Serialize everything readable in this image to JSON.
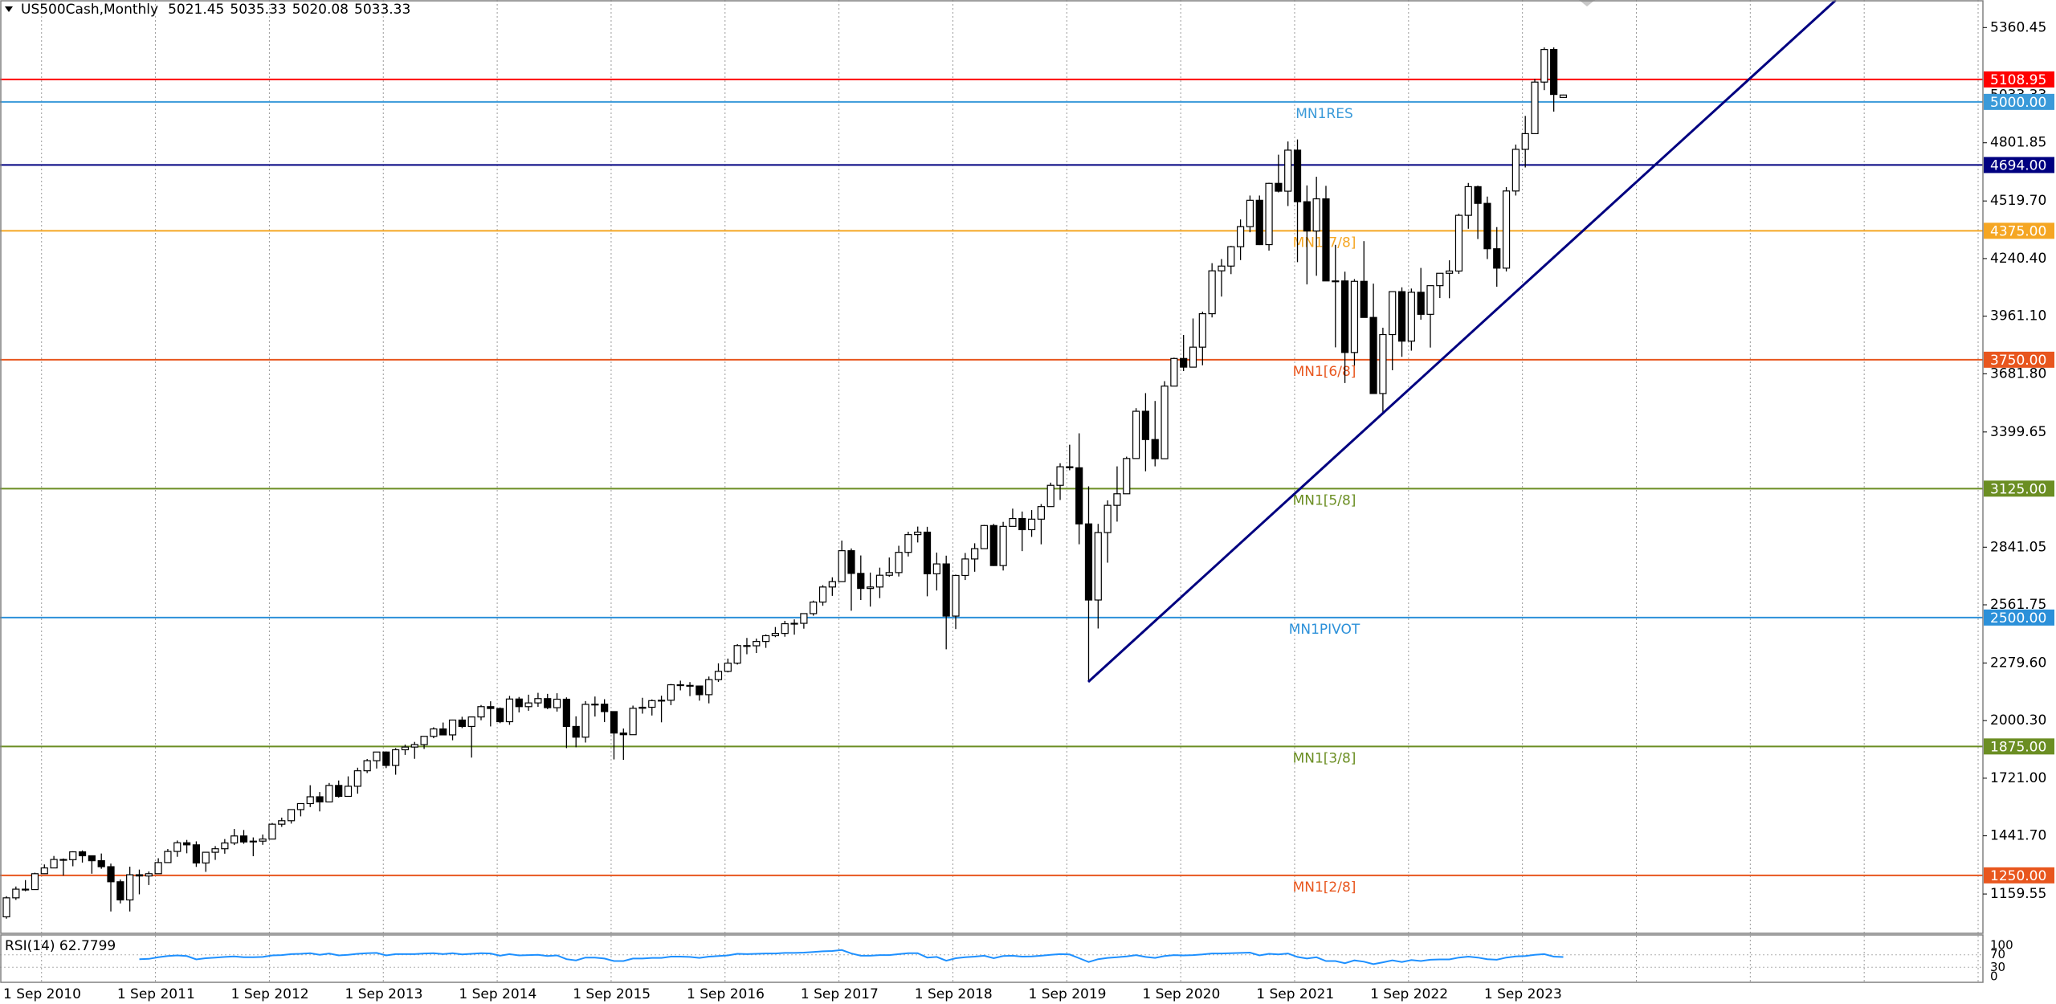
{
  "chart_data": {
    "type": "candlestick",
    "title": "US500Cash,Monthly",
    "categories": [
      "1 Sep 2010",
      null,
      null,
      null,
      null,
      null,
      null,
      null,
      null,
      null,
      null,
      null,
      "1 Sep 2011",
      null,
      null,
      null,
      null,
      null,
      null,
      null,
      null,
      null,
      null,
      null,
      "1 Sep 2012",
      null,
      null,
      null,
      null,
      null,
      null,
      null,
      null,
      null,
      null,
      null,
      "1 Sep 2013",
      null,
      null,
      null,
      null,
      null,
      null,
      null,
      null,
      null,
      null,
      null,
      "1 Sep 2014",
      null,
      null,
      null,
      null,
      null,
      null,
      null,
      null,
      null,
      null,
      null,
      "1 Sep 2015",
      null,
      null,
      null,
      null,
      null,
      null,
      null,
      null,
      null,
      null,
      null,
      "1 Sep 2016",
      null,
      null,
      null,
      null,
      null,
      null,
      null,
      null,
      null,
      null,
      null,
      "1 Sep 2017",
      null,
      null,
      null,
      null,
      null,
      null,
      null,
      null,
      null,
      null,
      null,
      "1 Sep 2018",
      null,
      null,
      null,
      null,
      null,
      null,
      null,
      null,
      null,
      null,
      null,
      "1 Sep 2019",
      null,
      null,
      null,
      null,
      null,
      null,
      null,
      null,
      null,
      null,
      null,
      "1 Sep 2020",
      null,
      null,
      null,
      null,
      null,
      null,
      null,
      null,
      null,
      null,
      null,
      "1 Sep 2021",
      null,
      null,
      null,
      null,
      null,
      null,
      null,
      null,
      null,
      null,
      null,
      "1 Sep 2022",
      null,
      null,
      null,
      null,
      null,
      null,
      null,
      null,
      null,
      null,
      null,
      "1 Sep 2023",
      null,
      null,
      null,
      null,
      null,
      null,
      null,
      null
    ],
    "open": [
      1049,
      1141,
      1183,
      1181,
      1258,
      1286,
      1327,
      1326,
      1364,
      1345,
      1321,
      1292,
      1219,
      1131,
      1253,
      1247,
      1258,
      1312,
      1366,
      1408,
      1398,
      1310,
      1362,
      1379,
      1407,
      1441,
      1412,
      1416,
      1426,
      1498,
      1515,
      1569,
      1598,
      1631,
      1606,
      1686,
      1633,
      1682,
      1757,
      1806,
      1848,
      1783,
      1859,
      1872,
      1884,
      1924,
      1960,
      1931,
      2003,
      1972,
      2018,
      2068,
      2059,
      1995,
      2105,
      2068,
      2086,
      2107,
      2063,
      2104,
      1972,
      1920,
      2079,
      2080,
      2044,
      1940,
      1932,
      2060,
      2065,
      2097,
      2099,
      2174,
      2171,
      2168,
      2126,
      2199,
      2239,
      2279,
      2364,
      2363,
      2384,
      2412,
      2423,
      2470,
      2472,
      2519,
      2575,
      2648,
      2674,
      2824,
      2714,
      2641,
      2648,
      2705,
      2718,
      2816,
      2902,
      2914,
      2712,
      2760,
      2507,
      2704,
      2784,
      2834,
      2946,
      2752,
      2942,
      2980,
      2926,
      2977,
      3038,
      3141,
      3231,
      3226,
      2954,
      2585,
      2912,
      3044,
      3100,
      3271,
      3500,
      3363,
      3270,
      3622,
      3756,
      3714,
      3811,
      3973,
      4181,
      4204,
      4298,
      4395,
      4523,
      4308,
      4605,
      4567,
      4766,
      4516,
      4374,
      4530,
      4132,
      4132,
      3785,
      4130,
      3955,
      3586,
      3872,
      4080,
      3840,
      4077,
      3970,
      4109,
      4169,
      4180,
      4450,
      4589,
      4508,
      4288,
      4194,
      4568,
      4770,
      4846,
      5096,
      5254,
      5021.45
    ],
    "high": [
      1149,
      1196,
      1227,
      1263,
      1303,
      1344,
      1332,
      1367,
      1371,
      1346,
      1356,
      1307,
      1230,
      1292,
      1278,
      1269,
      1333,
      1378,
      1419,
      1422,
      1415,
      1364,
      1392,
      1426,
      1475,
      1470,
      1434,
      1448,
      1504,
      1530,
      1570,
      1598,
      1687,
      1654,
      1698,
      1710,
      1730,
      1772,
      1814,
      1849,
      1851,
      1867,
      1884,
      1897,
      1925,
      1968,
      1991,
      2005,
      2019,
      2018,
      2076,
      2094,
      2064,
      2120,
      2115,
      2126,
      2135,
      2130,
      2133,
      2113,
      2021,
      2095,
      2117,
      2104,
      2044,
      1962,
      2073,
      2111,
      2103,
      2121,
      2178,
      2194,
      2187,
      2169,
      2214,
      2278,
      2301,
      2371,
      2401,
      2398,
      2418,
      2454,
      2484,
      2491,
      2520,
      2582,
      2657,
      2695,
      2873,
      2835,
      2801,
      2718,
      2742,
      2791,
      2848,
      2916,
      2941,
      2940,
      2815,
      2800,
      2708,
      2813,
      2860,
      2949,
      2954,
      2964,
      3028,
      3014,
      3021,
      3050,
      3154,
      3248,
      3338,
      3393,
      3136,
      2954,
      3068,
      3233,
      3280,
      3515,
      3588,
      3550,
      3646,
      3760,
      3870,
      3950,
      3983,
      4218,
      4238,
      4302,
      4430,
      4546,
      4546,
      4608,
      4744,
      4808,
      4818,
      4595,
      4637,
      4593,
      4307,
      4177,
      4141,
      4325,
      4119,
      3905,
      4080,
      4101,
      4095,
      4195,
      4110,
      4170,
      4232,
      4458,
      4607,
      4594,
      4541,
      4393,
      4587,
      4793,
      4932,
      5111,
      5264,
      5264,
      5035.33
    ],
    "low": [
      1040,
      1131,
      1173,
      1181,
      1257,
      1285,
      1249,
      1294,
      1312,
      1258,
      1282,
      1075,
      1114,
      1075,
      1158,
      1203,
      1258,
      1312,
      1340,
      1357,
      1291,
      1267,
      1325,
      1355,
      1397,
      1403,
      1343,
      1398,
      1426,
      1485,
      1501,
      1536,
      1581,
      1560,
      1604,
      1627,
      1633,
      1646,
      1746,
      1768,
      1770,
      1738,
      1834,
      1815,
      1863,
      1915,
      1930,
      1905,
      1964,
      1821,
      2002,
      1972,
      1988,
      1980,
      2040,
      2048,
      2067,
      2056,
      2044,
      1867,
      1871,
      1894,
      2020,
      1993,
      1812,
      1810,
      1932,
      2034,
      2025,
      1992,
      2075,
      2147,
      2119,
      2097,
      2084,
      2188,
      2234,
      2272,
      2322,
      2328,
      2353,
      2405,
      2407,
      2417,
      2446,
      2509,
      2557,
      2605,
      2674,
      2533,
      2585,
      2553,
      2594,
      2698,
      2699,
      2796,
      2864,
      2603,
      2631,
      2346,
      2444,
      2682,
      2722,
      2834,
      2750,
      2728,
      2942,
      2822,
      2891,
      2855,
      3038,
      3070,
      3214,
      2855,
      2192,
      2447,
      2766,
      2965,
      3100,
      3271,
      3209,
      3233,
      3270,
      3622,
      3695,
      3714,
      3723,
      3955,
      4056,
      4165,
      4233,
      4368,
      4306,
      4279,
      4561,
      4495,
      4223,
      4115,
      4157,
      4132,
      3810,
      3637,
      3722,
      3955,
      3584,
      3492,
      3699,
      3764,
      3794,
      3944,
      3809,
      4049,
      4048,
      4166,
      4385,
      4335,
      4238,
      4104,
      4178,
      4546,
      4682,
      4845,
      5057,
      4953,
      5020.08
    ],
    "close": [
      1141,
      1183,
      1181,
      1258,
      1286,
      1327,
      1326,
      1364,
      1345,
      1321,
      1292,
      1219,
      1131,
      1253,
      1247,
      1258,
      1312,
      1366,
      1408,
      1398,
      1310,
      1362,
      1379,
      1407,
      1441,
      1412,
      1416,
      1426,
      1498,
      1515,
      1569,
      1598,
      1631,
      1606,
      1686,
      1633,
      1682,
      1757,
      1806,
      1848,
      1783,
      1859,
      1872,
      1884,
      1924,
      1960,
      1931,
      2003,
      1972,
      2018,
      2068,
      2059,
      1995,
      2105,
      2068,
      2086,
      2107,
      2063,
      2104,
      1972,
      1920,
      2079,
      2080,
      2044,
      1940,
      1932,
      2060,
      2065,
      2097,
      2099,
      2174,
      2171,
      2168,
      2126,
      2199,
      2239,
      2279,
      2364,
      2363,
      2384,
      2412,
      2423,
      2470,
      2472,
      2519,
      2575,
      2648,
      2674,
      2824,
      2714,
      2641,
      2648,
      2705,
      2718,
      2816,
      2902,
      2914,
      2712,
      2760,
      2507,
      2704,
      2784,
      2834,
      2946,
      2752,
      2942,
      2980,
      2926,
      2977,
      3038,
      3141,
      3231,
      3226,
      2954,
      2585,
      2912,
      3044,
      3100,
      3271,
      3500,
      3363,
      3270,
      3622,
      3756,
      3714,
      3811,
      3973,
      4181,
      4204,
      4298,
      4395,
      4523,
      4308,
      4605,
      4567,
      4766,
      4516,
      4374,
      4530,
      4132,
      4132,
      3785,
      4130,
      3955,
      3586,
      3872,
      4080,
      3840,
      4077,
      3970,
      4109,
      4169,
      4180,
      4450,
      4589,
      4508,
      4288,
      4194,
      4568,
      4770,
      4846,
      5096,
      5254,
      5036,
      5033.33
    ],
    "up_color": "#ffffff",
    "down_color": "#000000",
    "ylim": [
      969,
      5494
    ],
    "yticks": [
      5360.45,
      4801.85,
      {
        "value": 4519.7,
        "label": "4519.70"
      },
      {
        "value": 4240.4,
        "label": "4240.40"
      },
      {
        "value": 3961.1,
        "label": "3961.10"
      },
      {
        "value": 3681.8,
        "label": "3681.80"
      },
      3399.65,
      2841.05,
      2561.75,
      {
        "value": 2279.6,
        "label": "2279.60"
      },
      {
        "value": 2000.3,
        "label": "2000.30"
      },
      {
        "value": 1721,
        "label": "1721.00"
      },
      {
        "value": 1441.7,
        "label": "1441.70"
      },
      1159.55
    ],
    "grid": true,
    "hlines": [
      {
        "value": 5108.95,
        "color": "#ff0000"
      },
      {
        "value": 5000,
        "value_label": "5000.00",
        "label": "MN1RES",
        "color": "#3a9ad9"
      },
      {
        "value": 4694,
        "value_label": "4694.00",
        "color": "#000080"
      },
      {
        "value": 4375,
        "value_label": "4375.00",
        "label": "MN1[7/8]",
        "color": "#f5a623"
      },
      {
        "value": 3750,
        "value_label": "3750.00",
        "label": "MN1[6/8]",
        "color": "#e8561e"
      },
      {
        "value": 3125,
        "value_label": "3125.00",
        "label": "MN1[5/8]",
        "color": "#6b8e23"
      },
      {
        "value": 2500,
        "value_label": "2500.00",
        "label": "MN1PIVOT",
        "color": "#2b90d9"
      },
      {
        "value": 1875,
        "value_label": "1875.00",
        "label": "MN1[3/8]",
        "color": "#6b8e23"
      },
      {
        "value": 1250,
        "value_label": "1250.00",
        "label": "MN1[2/8]",
        "color": "#e8561e"
      }
    ],
    "indicator": {
      "name": "RSI(14) 62.7799",
      "color": "#1e90ff",
      "ylim": [
        0,
        100
      ],
      "yticks": [
        100,
        70,
        30,
        0
      ],
      "values": [
        null,
        null,
        null,
        null,
        null,
        null,
        null,
        null,
        null,
        null,
        null,
        null,
        null,
        null,
        56,
        57,
        62,
        66,
        68,
        66,
        55,
        59,
        61,
        63,
        65,
        62,
        62,
        63,
        68,
        69,
        72,
        73,
        75,
        70,
        74,
        68,
        70,
        73,
        75,
        76,
        68,
        72,
        72,
        72,
        74,
        75,
        72,
        75,
        71,
        73,
        75,
        74,
        67,
        72,
        68,
        69,
        70,
        66,
        68,
        56,
        52,
        61,
        61,
        58,
        50,
        50,
        58,
        58,
        60,
        60,
        64,
        64,
        63,
        60,
        64,
        66,
        68,
        73,
        72,
        73,
        74,
        74,
        76,
        76,
        77,
        79,
        81,
        82,
        85,
        74,
        67,
        67,
        69,
        69,
        72,
        75,
        75,
        61,
        63,
        51,
        59,
        62,
        64,
        67,
        59,
        66,
        67,
        64,
        65,
        67,
        70,
        72,
        71,
        59,
        47,
        56,
        60,
        62,
        65,
        69,
        63,
        60,
        66,
        69,
        68,
        69,
        71,
        74,
        74,
        75,
        76,
        77,
        68,
        73,
        71,
        74,
        63,
        58,
        62,
        50,
        50,
        43,
        52,
        48,
        40,
        46,
        52,
        47,
        53,
        50,
        54,
        55,
        55,
        61,
        64,
        61,
        56,
        54,
        61,
        65,
        66,
        70,
        72,
        64,
        62.7799
      ]
    }
  }
}
